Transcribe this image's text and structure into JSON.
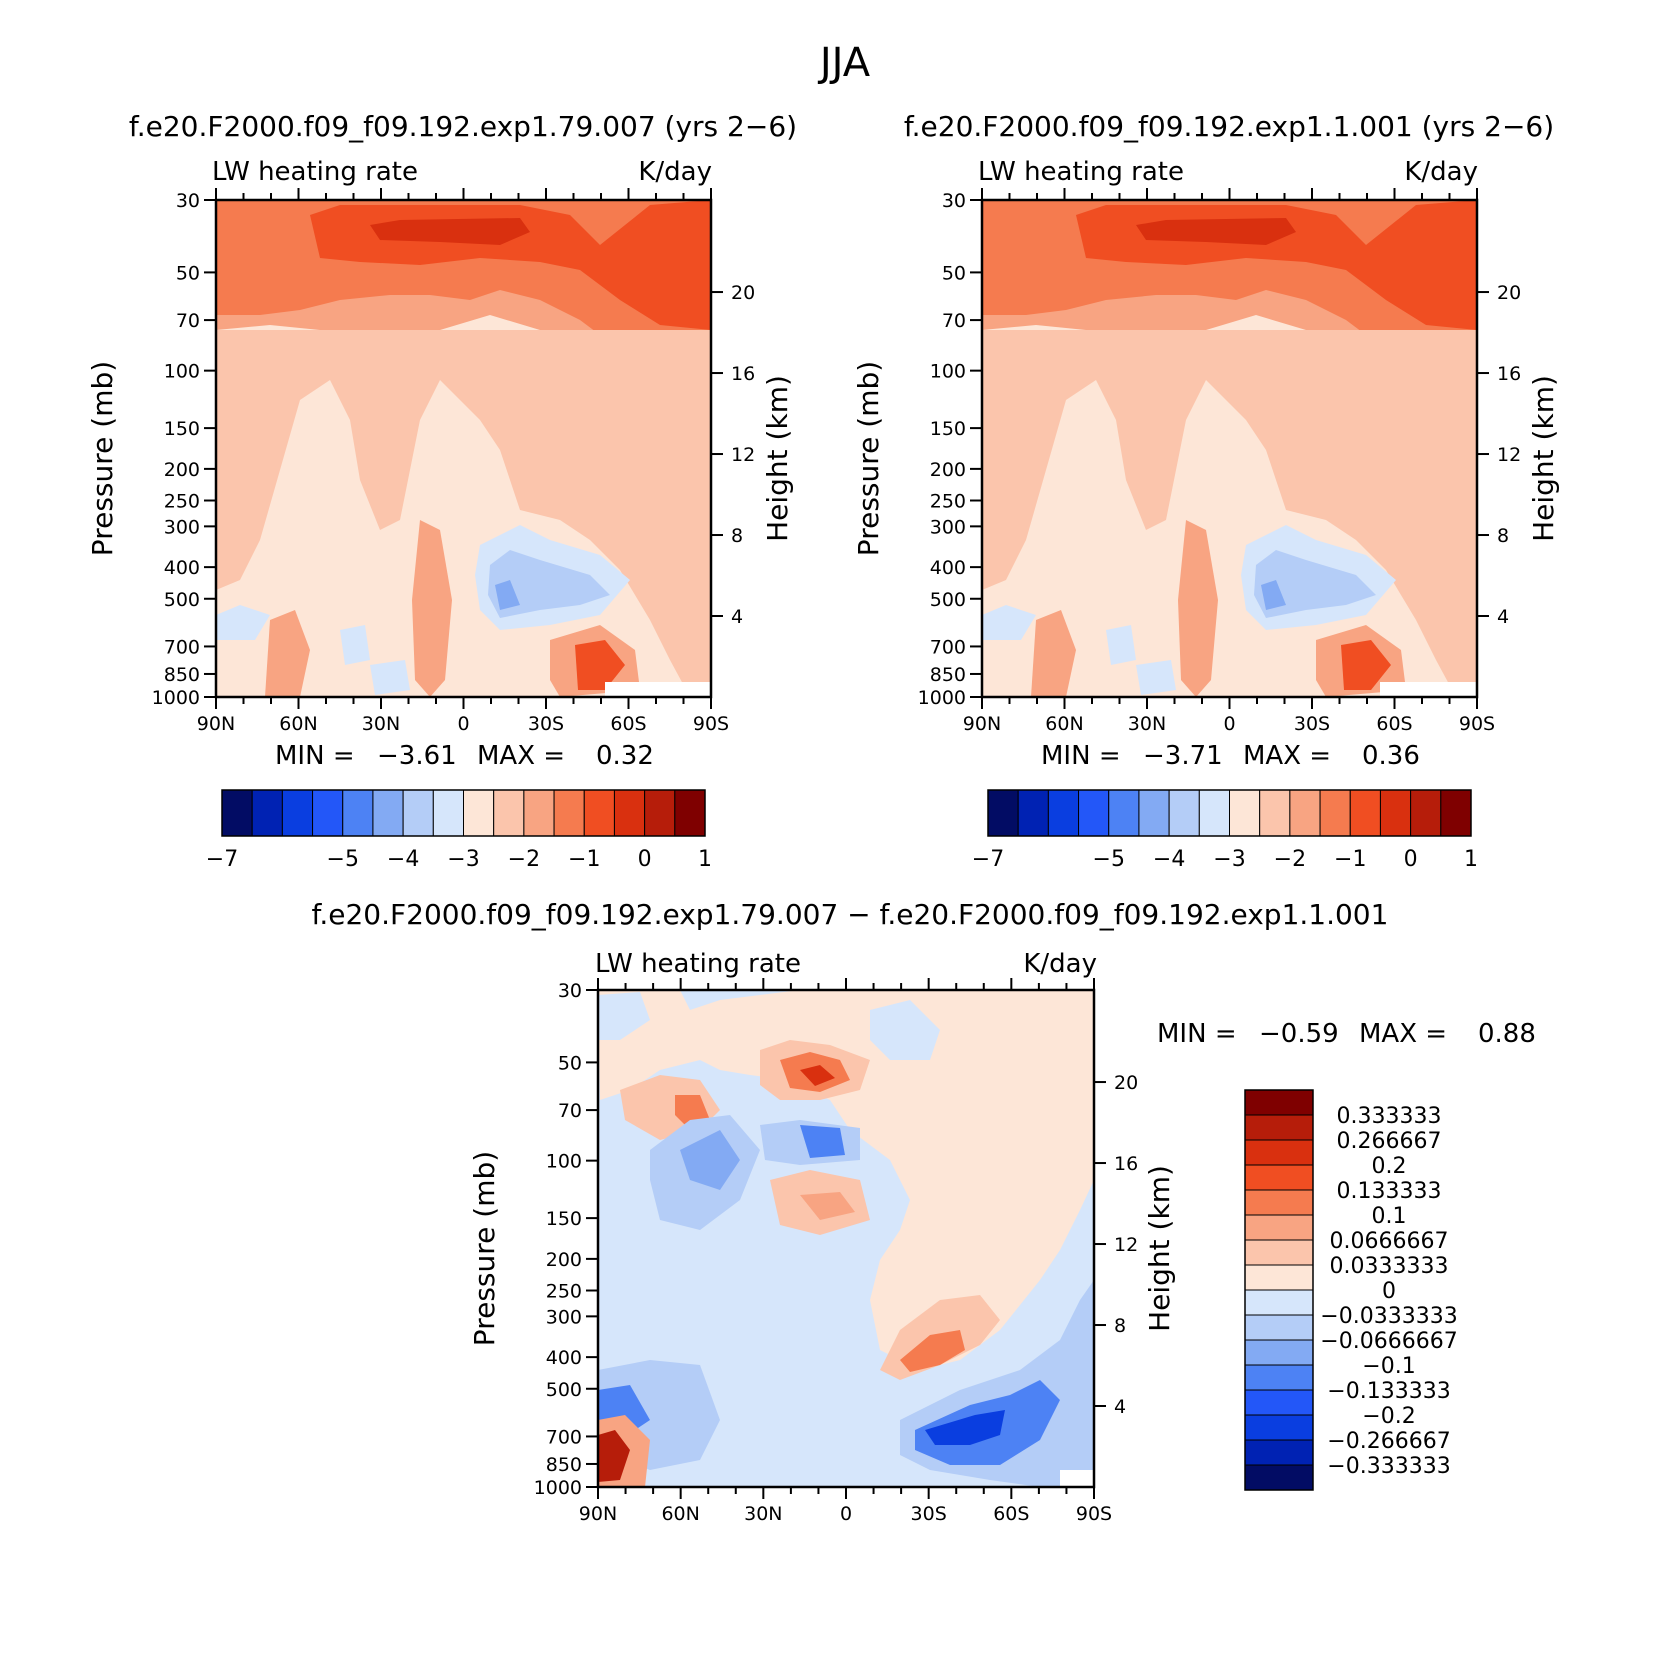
{
  "figure": {
    "title": "JJA"
  },
  "colors": {
    "abs_palette": [
      "#020c64",
      "#0022b3",
      "#0a3ee0",
      "#2357f8",
      "#4d82f4",
      "#83aaf3",
      "#b4cdf7",
      "#d6e6fb",
      "#fde6d7",
      "#fbc5ac",
      "#f8a482",
      "#f57b4f",
      "#f04e22",
      "#d9300f",
      "#b61d0a",
      "#7f0000"
    ],
    "diff_palette": [
      "#020c64",
      "#0022b3",
      "#0a3ee0",
      "#2357f8",
      "#4d82f4",
      "#83aaf3",
      "#b4cdf7",
      "#d6e6fb",
      "#fde6d7",
      "#fbc5ac",
      "#f8a482",
      "#f57b4f",
      "#f04e22",
      "#d9300f",
      "#b61d0a",
      "#7f0000"
    ]
  },
  "chart_data": [
    {
      "type": "heatmap",
      "title": "f.e20.F2000.f09_f09.192.exp1.79.007 (yrs 2−6)",
      "left_label": "LW heating rate",
      "right_label": "K/day",
      "xlabel": "",
      "ylabel": "Pressure (mb)",
      "y2label": "Height (km)",
      "x_ticks": [
        "90N",
        "60N",
        "30N",
        "0",
        "30S",
        "60S",
        "90S"
      ],
      "y_ticks": [
        30,
        50,
        70,
        100,
        150,
        200,
        250,
        300,
        400,
        500,
        700,
        850,
        1000
      ],
      "y2_ticks": [
        20,
        16,
        12,
        8,
        4
      ],
      "ylim": [
        30,
        1000
      ],
      "xlim": [
        "90N",
        "90S"
      ],
      "stats": {
        "min_label": "MIN =",
        "min": "−3.61",
        "max_label": "MAX =",
        "max": "0.32"
      },
      "colorbar_labels": [
        "−7",
        "−5",
        "−4",
        "−3",
        "−2",
        "−1",
        "0",
        "1"
      ],
      "colorbar_levels": [
        -7,
        -6.5,
        -6,
        -5.5,
        -5,
        -4.5,
        -4,
        -3.5,
        -3,
        -2.5,
        -2,
        -1.5,
        -1,
        -0.5,
        0,
        0.5,
        1
      ]
    },
    {
      "type": "heatmap",
      "title": "f.e20.F2000.f09_f09.192.exp1.1.001 (yrs 2−6)",
      "left_label": "LW heating rate",
      "right_label": "K/day",
      "xlabel": "",
      "ylabel": "Pressure (mb)",
      "y2label": "Height (km)",
      "x_ticks": [
        "90N",
        "60N",
        "30N",
        "0",
        "30S",
        "60S",
        "90S"
      ],
      "y_ticks": [
        30,
        50,
        70,
        100,
        150,
        200,
        250,
        300,
        400,
        500,
        700,
        850,
        1000
      ],
      "y2_ticks": [
        20,
        16,
        12,
        8,
        4
      ],
      "ylim": [
        30,
        1000
      ],
      "xlim": [
        "90N",
        "90S"
      ],
      "stats": {
        "min_label": "MIN =",
        "min": "−3.71",
        "max_label": "MAX =",
        "max": "0.36"
      },
      "colorbar_labels": [
        "−7",
        "−5",
        "−4",
        "−3",
        "−2",
        "−1",
        "0",
        "1"
      ],
      "colorbar_levels": [
        -7,
        -6.5,
        -6,
        -5.5,
        -5,
        -4.5,
        -4,
        -3.5,
        -3,
        -2.5,
        -2,
        -1.5,
        -1,
        -0.5,
        0,
        0.5,
        1
      ]
    },
    {
      "type": "heatmap",
      "title": "f.e20.F2000.f09_f09.192.exp1.79.007 − f.e20.F2000.f09_f09.192.exp1.1.001",
      "left_label": "LW heating rate",
      "right_label": "K/day",
      "xlabel": "",
      "ylabel": "Pressure (mb)",
      "y2label": "Height (km)",
      "x_ticks": [
        "90N",
        "60N",
        "30N",
        "0",
        "30S",
        "60S",
        "90S"
      ],
      "y_ticks": [
        30,
        50,
        70,
        100,
        150,
        200,
        250,
        300,
        400,
        500,
        700,
        850,
        1000
      ],
      "y2_ticks": [
        20,
        16,
        12,
        8,
        4
      ],
      "ylim": [
        30,
        1000
      ],
      "xlim": [
        "90N",
        "90S"
      ],
      "stats": {
        "min_label": "MIN =",
        "min": "−0.59",
        "max_label": "MAX =",
        "max": "0.88"
      },
      "colorbar_labels": [
        "0.333333",
        "0.266667",
        "0.2",
        "0.133333",
        "0.1",
        "0.0666667",
        "0.0333333",
        "0",
        "−0.0333333",
        "−0.0666667",
        "−0.1",
        "−0.133333",
        "−0.2",
        "−0.266667",
        "−0.333333"
      ],
      "colorbar_levels": [
        0.333333,
        0.266667,
        0.2,
        0.133333,
        0.1,
        0.0666667,
        0.0333333,
        0,
        -0.0333333,
        -0.0666667,
        -0.1,
        -0.133333,
        -0.2,
        -0.266667,
        -0.333333
      ]
    }
  ]
}
